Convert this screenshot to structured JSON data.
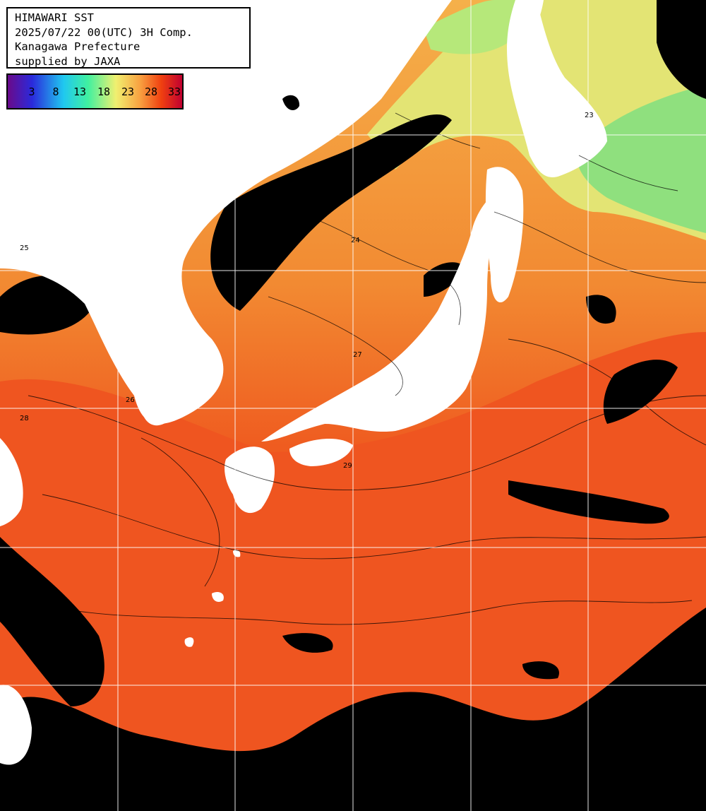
{
  "map": {
    "info_lines": [
      "HIMAWARI SST",
      "2025/07/22 00(UTC) 3H Comp.",
      "Kanagawa Prefecture",
      "supplied by JAXA"
    ],
    "colorbar": {
      "ticks": [
        "3",
        "8",
        "13",
        "18",
        "23",
        "28",
        "33"
      ],
      "gradient_colors": [
        "#6a0a8a",
        "#2a2adc",
        "#20c8f0",
        "#40f0a0",
        "#f0f070",
        "#f8a040",
        "#f04010",
        "#c00030"
      ]
    },
    "colors": {
      "land": "#ffffff",
      "cloud_missing": "#000000",
      "warm_sea": "#f0561e",
      "mid_sea": "#f39a40",
      "cool_sea": "#dfe870",
      "cold_sea": "#7ee083",
      "grid": "#ffffff",
      "contour": "#000000"
    },
    "contour_labels": [
      "25",
      "26",
      "27",
      "28",
      "24",
      "23",
      "29"
    ]
  }
}
